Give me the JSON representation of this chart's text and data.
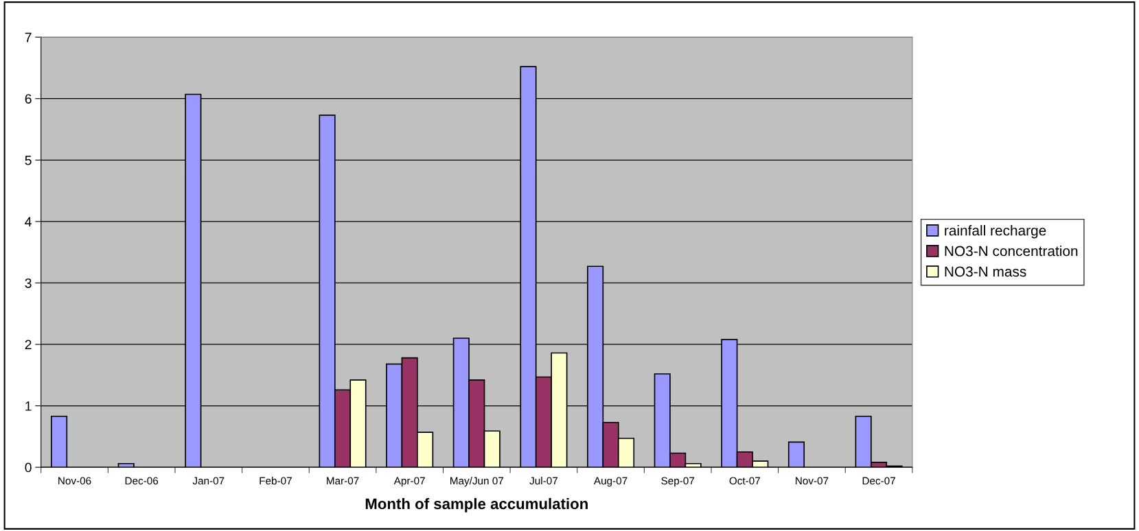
{
  "chart_data": {
    "type": "bar",
    "xlabel": "Month of sample accumulation",
    "categories": [
      "Nov-06",
      "Dec-06",
      "Jan-07",
      "Feb-07",
      "Mar-07",
      "Apr-07",
      "May/Jun 07",
      "Jul-07",
      "Aug-07",
      "Sep-07",
      "Oct-07",
      "Nov-07",
      "Dec-07"
    ],
    "series": [
      {
        "name": "rainfall recharge",
        "color": "#9999ff",
        "values": [
          0.83,
          0.06,
          6.07,
          null,
          5.73,
          1.68,
          2.1,
          6.52,
          3.27,
          1.52,
          2.08,
          0.41,
          0.83
        ]
      },
      {
        "name": "NO3-N concentration",
        "color": "#993366",
        "values": [
          null,
          null,
          null,
          null,
          1.26,
          1.78,
          1.42,
          1.47,
          0.73,
          0.23,
          0.25,
          null,
          0.08
        ]
      },
      {
        "name": "NO3-N mass",
        "color": "#ffffcc",
        "values": [
          null,
          null,
          null,
          null,
          1.42,
          0.57,
          0.59,
          1.86,
          0.47,
          0.06,
          0.1,
          null,
          0.02
        ]
      }
    ],
    "ylim": [
      0,
      7
    ],
    "yticks": [
      0,
      1,
      2,
      3,
      4,
      5,
      6,
      7
    ],
    "grid": "y",
    "legend": "right"
  }
}
